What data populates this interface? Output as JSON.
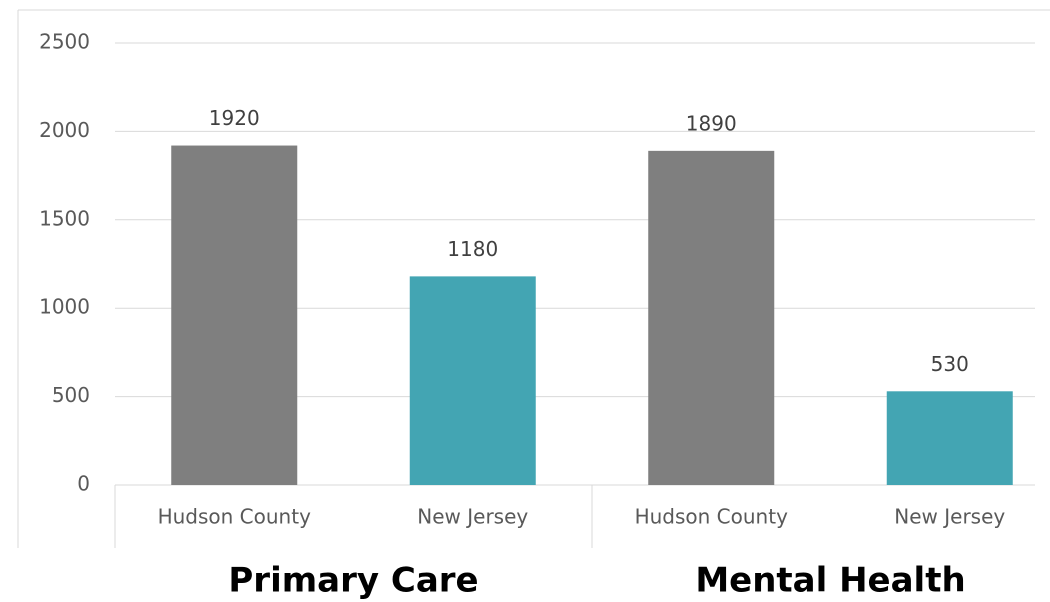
{
  "chart_data": {
    "type": "bar",
    "categories": [
      "Hudson County",
      "New Jersey",
      "Hudson County",
      "New Jersey"
    ],
    "groups": [
      "Primary Care",
      "Mental Health"
    ],
    "values": [
      1920,
      1180,
      1890,
      530
    ],
    "colors": [
      "#7f7f7f",
      "#43a5b3",
      "#7f7f7f",
      "#43a5b3"
    ],
    "ylim": [
      0,
      2500
    ],
    "yticks": [
      0,
      500,
      1000,
      1500,
      2000,
      2500
    ],
    "grid": true
  }
}
